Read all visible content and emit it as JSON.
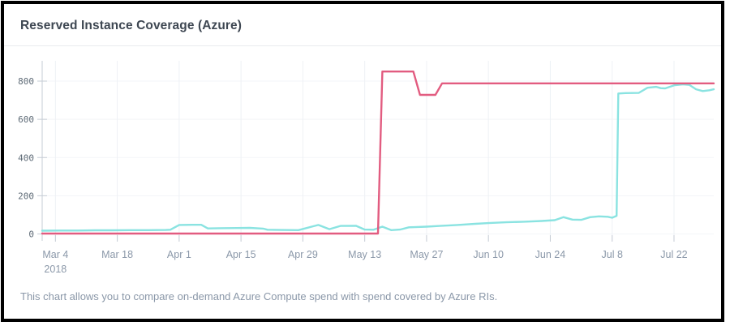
{
  "header": {
    "title": "Reserved Instance Coverage (Azure)"
  },
  "footer": {
    "note": "This chart allows you to compare on-demand Azure Compute spend with spend covered by Azure RIs."
  },
  "colors": {
    "pink_series": "#e25c80",
    "cyan_series": "#8ae3e1",
    "grid_vertical": "#eef1f5",
    "grid_horizontal": "#f3f5f8",
    "axis": "#c6ccd5",
    "y_tick_label": "#5d6a76",
    "x_tick_label": "#8b98a9",
    "title_text": "#3e4752",
    "footer_text": "#8a97a8",
    "divider": "#e9ecef",
    "frame_border": "#000000"
  },
  "chart_data": {
    "type": "line",
    "title": "Reserved Instance Coverage (Azure)",
    "legend": "none",
    "grid": true,
    "x_domain_days": [
      0,
      152
    ],
    "x_ticks": [
      {
        "label": "Mar 4",
        "sublabel": "2018",
        "day": 3
      },
      {
        "label": "Mar 18",
        "day": 17
      },
      {
        "label": "Apr 1",
        "day": 31
      },
      {
        "label": "Apr 15",
        "day": 45
      },
      {
        "label": "Apr 29",
        "day": 59
      },
      {
        "label": "May 13",
        "day": 73
      },
      {
        "label": "May 27",
        "day": 87
      },
      {
        "label": "Jun 10",
        "day": 101
      },
      {
        "label": "Jun 24",
        "day": 115
      },
      {
        "label": "Jul 8",
        "day": 129
      },
      {
        "label": "Jul 22",
        "day": 143
      }
    ],
    "y_ticks": [
      0,
      200,
      400,
      600,
      800
    ],
    "ylim": [
      -25,
      900
    ],
    "series": [
      {
        "name": "cyan",
        "color": "#8ae3e1",
        "points": [
          [
            0,
            17
          ],
          [
            4,
            18
          ],
          [
            8,
            18
          ],
          [
            12,
            19
          ],
          [
            16,
            19
          ],
          [
            20,
            20
          ],
          [
            24,
            20
          ],
          [
            28,
            21
          ],
          [
            29,
            22
          ],
          [
            31,
            47
          ],
          [
            34,
            48
          ],
          [
            36,
            48
          ],
          [
            37.5,
            29
          ],
          [
            40,
            30
          ],
          [
            44,
            31
          ],
          [
            47,
            32
          ],
          [
            50,
            28
          ],
          [
            51,
            22
          ],
          [
            54,
            21
          ],
          [
            58,
            20
          ],
          [
            61,
            38
          ],
          [
            62.5,
            47
          ],
          [
            65,
            25
          ],
          [
            67.5,
            42
          ],
          [
            71,
            43
          ],
          [
            73,
            23
          ],
          [
            75,
            22
          ],
          [
            77,
            38
          ],
          [
            79,
            20
          ],
          [
            81,
            23
          ],
          [
            83,
            35
          ],
          [
            87,
            38
          ],
          [
            90,
            42
          ],
          [
            94,
            47
          ],
          [
            98,
            53
          ],
          [
            101,
            57
          ],
          [
            105,
            61
          ],
          [
            109,
            64
          ],
          [
            113,
            68
          ],
          [
            116,
            72
          ],
          [
            118,
            88
          ],
          [
            120,
            75
          ],
          [
            122,
            74
          ],
          [
            124,
            88
          ],
          [
            126,
            92
          ],
          [
            128,
            90
          ],
          [
            129,
            85
          ],
          [
            130,
            95
          ],
          [
            130.4,
            735
          ],
          [
            132,
            737
          ],
          [
            135,
            738
          ],
          [
            137,
            765
          ],
          [
            139,
            770
          ],
          [
            140,
            763
          ],
          [
            141,
            762
          ],
          [
            143,
            778
          ],
          [
            145,
            783
          ],
          [
            146.5,
            780
          ],
          [
            148,
            757
          ],
          [
            149.5,
            748
          ],
          [
            151,
            752
          ],
          [
            152,
            757
          ]
        ]
      },
      {
        "name": "pink",
        "color": "#e25c80",
        "points": [
          [
            0,
            2
          ],
          [
            20,
            2
          ],
          [
            40,
            2
          ],
          [
            60,
            2
          ],
          [
            70,
            2
          ],
          [
            76,
            2
          ],
          [
            77,
            850
          ],
          [
            84,
            850
          ],
          [
            85.5,
            728
          ],
          [
            89,
            728
          ],
          [
            90.5,
            788
          ],
          [
            110,
            788
          ],
          [
            130,
            788
          ],
          [
            152,
            788
          ]
        ]
      }
    ]
  }
}
